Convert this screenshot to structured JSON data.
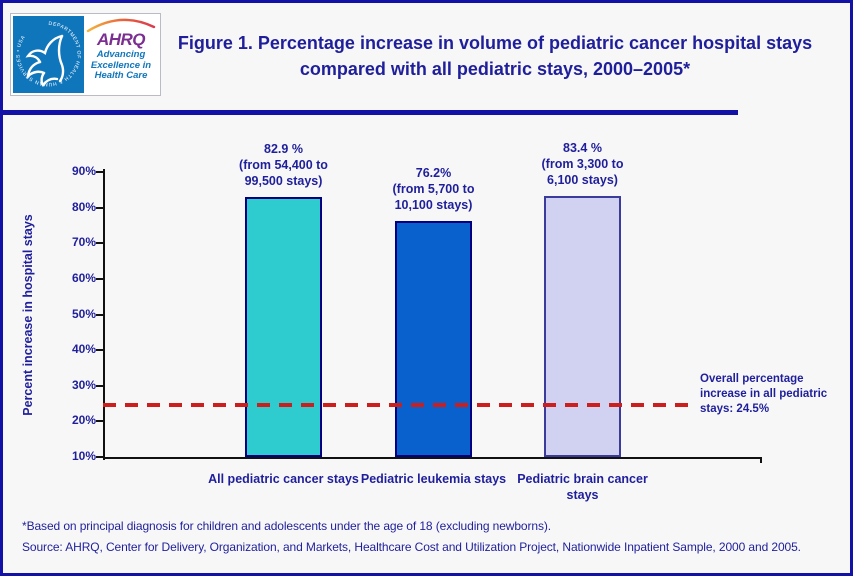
{
  "header": {
    "title": "Figure 1. Percentage increase in volume of pediatric cancer hospital stays compared with all pediatric stays, 2000–2005*",
    "logo": {
      "seal_text": "DEPARTMENT OF HEALTH & HUMAN SERVICES • USA",
      "ahrq_acronym": "AHRQ",
      "tagline": "Advancing Excellence in Health Care",
      "tagline_lines": [
        "Advancing",
        "Excellence in",
        "Health Care"
      ],
      "colors": {
        "hhs_blue": "#1076bc",
        "ahrq_purple": "#7b2f90",
        "arc_yellow": "#f5b43c",
        "arc_red": "#d93a4e"
      }
    }
  },
  "chart_data": {
    "type": "bar",
    "title": "Percentage increase in volume of pediatric cancer hospital stays compared with all pediatric stays, 2000–2005",
    "xlabel": "",
    "ylabel": "Percent increase in hospital stays",
    "ylim": [
      10,
      90
    ],
    "ytick_labels": [
      "90%",
      "80%",
      "70%",
      "60%",
      "50%",
      "40%",
      "30%",
      "20%",
      "10%"
    ],
    "grid": false,
    "legend": "none",
    "categories": [
      "All pediatric cancer stays",
      "Pediatric leukemia stays",
      "Pediatric brain cancer stays"
    ],
    "values": [
      82.9,
      76.2,
      83.4
    ],
    "bars": [
      {
        "category": "All pediatric cancer stays",
        "value": 82.9,
        "value_label": "82.9 %",
        "range_label": "(from 54,400 to 99,500 stays)",
        "fill": "#2eccce",
        "border": "#000080"
      },
      {
        "category": "Pediatric leukemia stays",
        "value": 76.2,
        "value_label": "76.2%",
        "range_label": "(from 5,700 to 10,100 stays)",
        "fill": "#0861cd",
        "border": "#000080"
      },
      {
        "category": "Pediatric brain cancer stays",
        "value": 83.4,
        "value_label": "83.4 %",
        "range_label": "(from 3,300 to 6,100 stays)",
        "fill": "#d1d1f1",
        "border": "#3b3b9b"
      }
    ],
    "reference_line": {
      "value": 24.5,
      "label": "Overall percentage increase in all pediatric stays: 24.5%",
      "color": "#cd1e1e",
      "style": "dashed"
    }
  },
  "footnotes": {
    "asterisk_note": "*Based on principal diagnosis for children and adolescents under the age of 18 (excluding newborns).",
    "source": "Source: AHRQ, Center for Delivery, Organization, and Markets, Healthcare Cost and Utilization Project, Nationwide Inpatient Sample, 2000 and 2005."
  },
  "colors": {
    "navy_text": "#1f1f9b",
    "page_border": "#1212a6",
    "divider": "#1212a6",
    "axis": "#111111",
    "background": "#f7f7f8"
  }
}
